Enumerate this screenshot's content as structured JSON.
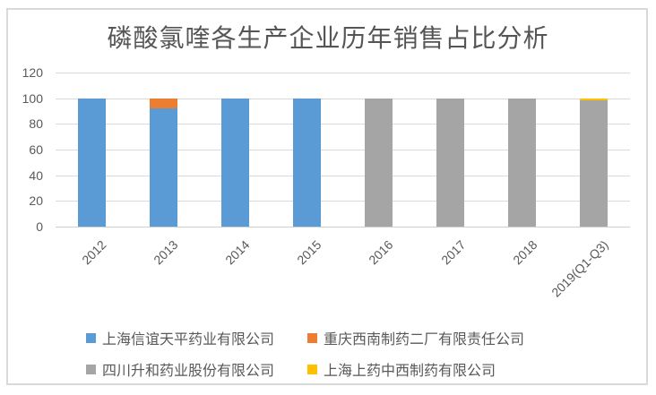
{
  "chart_data": {
    "type": "bar",
    "stacked": true,
    "title": "磷酸氯喹各生产企业历年销售占比分析",
    "xlabel": "",
    "ylabel": "",
    "categories": [
      "2012",
      "2013",
      "2014",
      "2015",
      "2016",
      "2017",
      "2018",
      "2019(Q1-Q3)"
    ],
    "series": [
      {
        "name": "上海信谊天平药业有限公司",
        "color": "#5B9BD5",
        "values": [
          100,
          92,
          100,
          100,
          0,
          0,
          0,
          0
        ]
      },
      {
        "name": "重庆西南制药二厂有限责任公司",
        "color": "#ED7D31",
        "values": [
          0,
          8,
          0,
          0,
          0,
          0,
          0,
          0
        ]
      },
      {
        "name": "四川升和药业股份有限公司",
        "color": "#A5A5A5",
        "values": [
          0,
          0,
          0,
          0,
          100,
          100,
          100,
          98.5
        ]
      },
      {
        "name": "上海上药中西制药有限公司",
        "color": "#FFC000",
        "values": [
          0,
          0,
          0,
          0,
          0,
          0,
          0,
          1.5
        ]
      }
    ],
    "ylim": [
      0,
      120
    ],
    "yticks": [
      0,
      20,
      40,
      60,
      80,
      100,
      120
    ],
    "grid": true,
    "legend_position": "bottom",
    "x_label_rotation": -45
  },
  "styles": {
    "background": "#ffffff",
    "frame_border_color": "#d9d9d9",
    "grid_color": "#d9d9d9",
    "text_color": "#595959"
  }
}
